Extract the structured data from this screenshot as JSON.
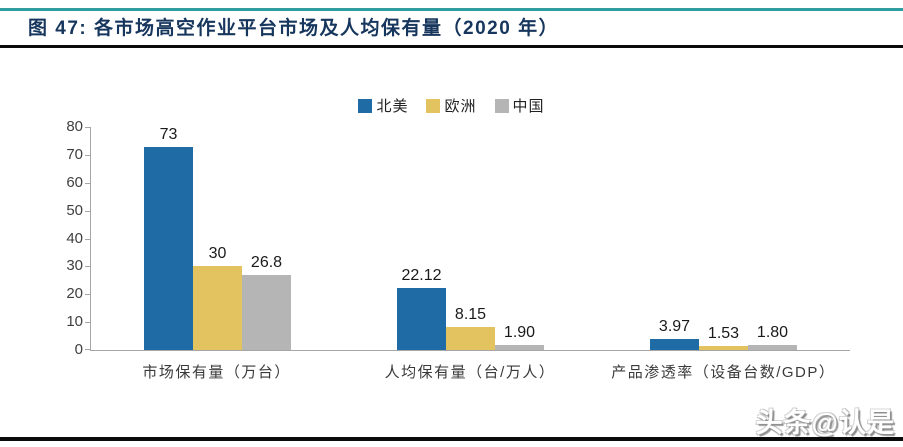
{
  "header": {
    "title": "图 47: 各市场高空作业平台市场及人均保有量（2020 年）"
  },
  "colors": {
    "accent_teal": "#2e9ea0",
    "title_navy": "#17365d",
    "rule_dark": "#0a0a0a",
    "axis_gray": "#a6a6a6",
    "north_america_blue": "#1f6ba5",
    "europe_yellow": "#e2c360",
    "china_gray": "#b5b5b5"
  },
  "watermark": "头条@认是",
  "chart_data": {
    "type": "bar",
    "title": "图 47: 各市场高空作业平台市场及人均保有量（2020 年）",
    "categories": [
      "市场保有量（万台）",
      "人均保有量（台/万人）",
      "产品渗透率（设备台数/GDP）"
    ],
    "series": [
      {
        "name": "北美",
        "color": "#1f6ba5",
        "values": [
          73,
          22.12,
          3.97
        ],
        "labels": [
          "73",
          "22.12",
          "3.97"
        ]
      },
      {
        "name": "欧洲",
        "color": "#e2c360",
        "values": [
          30,
          8.15,
          1.53
        ],
        "labels": [
          "30",
          "8.15",
          "1.53"
        ]
      },
      {
        "name": "中国",
        "color": "#b5b5b5",
        "values": [
          26.8,
          1.9,
          1.8
        ],
        "labels": [
          "26.8",
          "1.90",
          "1.80"
        ]
      }
    ],
    "xlabel": "",
    "ylabel": "",
    "ylim": [
      0,
      80
    ],
    "ytick_step": 10,
    "grid": false,
    "legend_position": "top-center"
  }
}
